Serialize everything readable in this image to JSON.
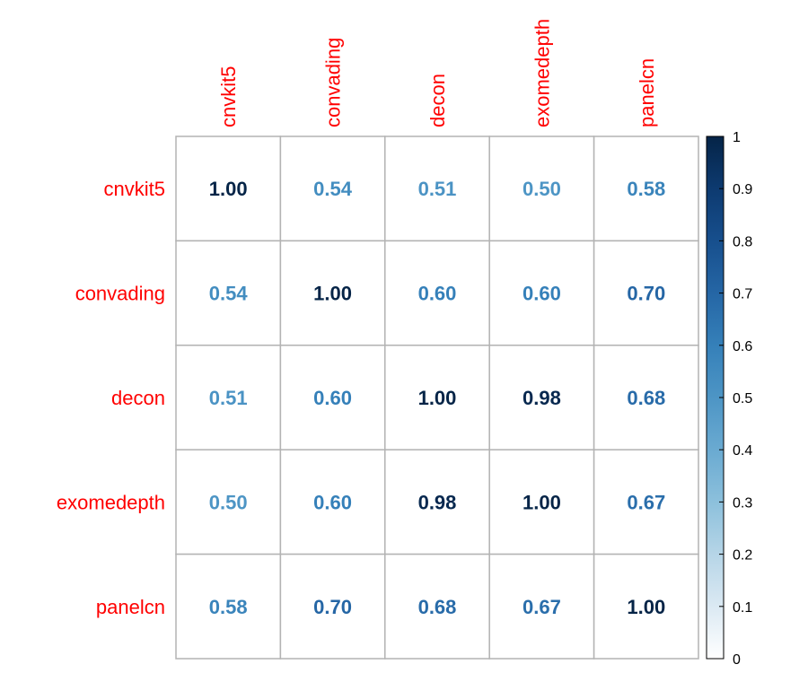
{
  "chart_data": {
    "type": "heatmap",
    "rows": [
      "cnvkit5",
      "convading",
      "decon",
      "exomedepth",
      "panelcn"
    ],
    "cols": [
      "cnvkit5",
      "convading",
      "decon",
      "exomedepth",
      "panelcn"
    ],
    "values": [
      [
        "1.00",
        "0.54",
        "0.51",
        "0.50",
        "0.58"
      ],
      [
        "0.54",
        "1.00",
        "0.60",
        "0.60",
        "0.70"
      ],
      [
        "0.51",
        "0.60",
        "1.00",
        "0.98",
        "0.68"
      ],
      [
        "0.50",
        "0.60",
        "0.98",
        "1.00",
        "0.67"
      ],
      [
        "0.58",
        "0.70",
        "0.68",
        "0.67",
        "1.00"
      ]
    ],
    "label_color": "#ff0000",
    "grid_color": "#b3b3b3",
    "colorbar": {
      "range": [
        0,
        1
      ],
      "ticks": [
        "0",
        "0.1",
        "0.2",
        "0.3",
        "0.4",
        "0.5",
        "0.6",
        "0.7",
        "0.8",
        "0.9",
        "1"
      ],
      "colors": [
        "#ffffff",
        "#dbe9f3",
        "#b6d5e7",
        "#8cc0dc",
        "#6aaad1",
        "#4d95c5",
        "#3580b9",
        "#2566a5",
        "#174f8d",
        "#0d3a70",
        "#052447"
      ]
    },
    "grid": true,
    "legend": "right"
  }
}
